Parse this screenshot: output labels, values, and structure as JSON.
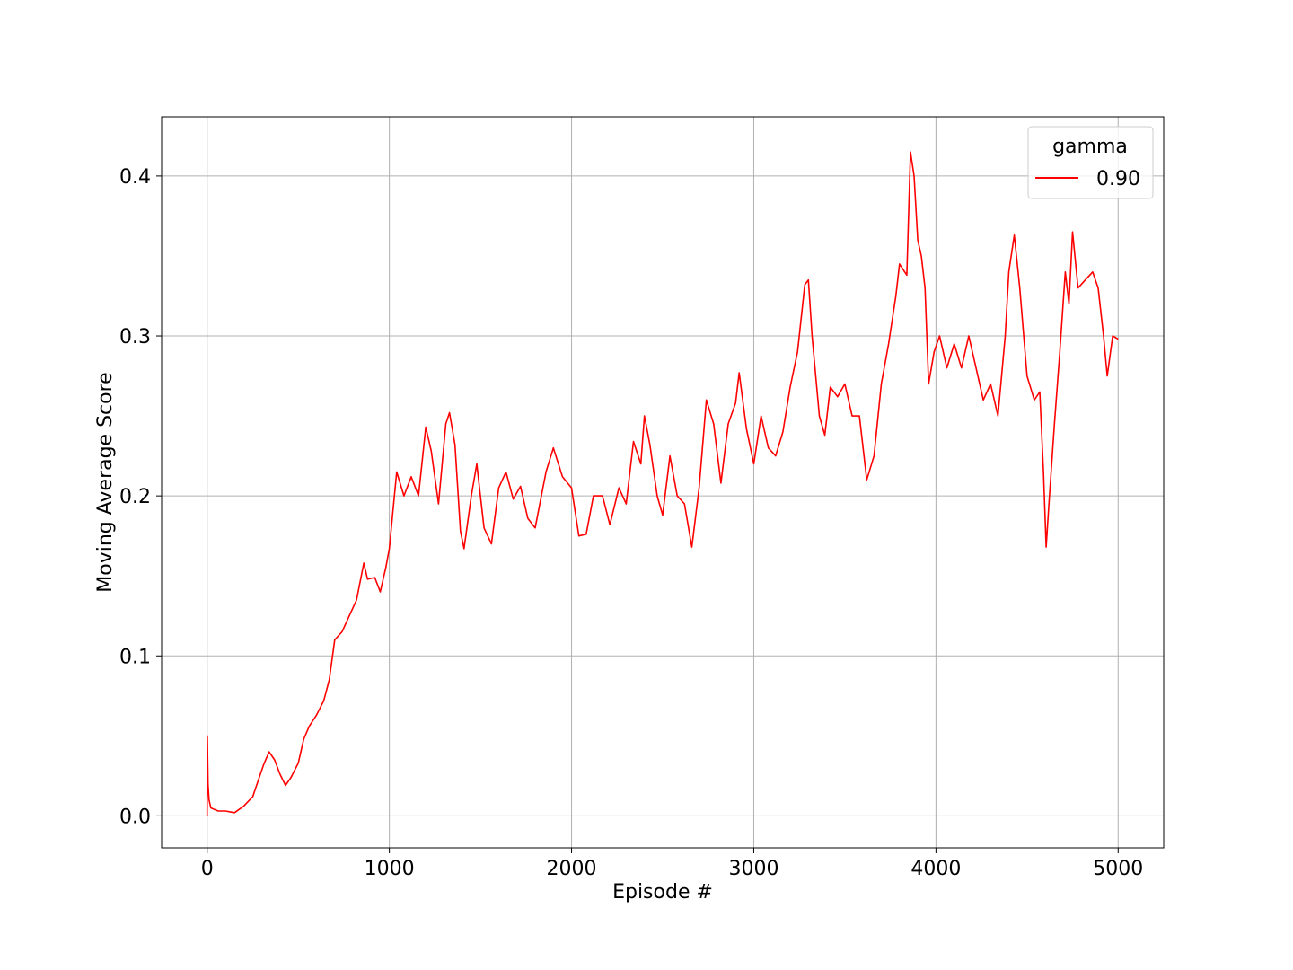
{
  "chart_data": {
    "type": "line",
    "title": "",
    "xlabel": "Episode #",
    "ylabel": "Moving Average Score",
    "xlim": [
      -250,
      5250
    ],
    "ylim": [
      -0.02,
      0.437
    ],
    "xticks": [
      0,
      1000,
      2000,
      3000,
      4000,
      5000
    ],
    "xtick_labels": [
      "0",
      "1000",
      "2000",
      "3000",
      "4000",
      "5000"
    ],
    "yticks": [
      0.0,
      0.1,
      0.2,
      0.3,
      0.4
    ],
    "ytick_labels": [
      "0.0",
      "0.1",
      "0.2",
      "0.3",
      "0.4"
    ],
    "grid": true,
    "legend": {
      "title": "gamma",
      "placement": "top-right"
    },
    "series": [
      {
        "name": "0.90",
        "color": "#ff0000",
        "points": [
          [
            0,
            0.0
          ],
          [
            1,
            0.05
          ],
          [
            5,
            0.02
          ],
          [
            10,
            0.01
          ],
          [
            20,
            0.005
          ],
          [
            40,
            0.004
          ],
          [
            60,
            0.003
          ],
          [
            100,
            0.003
          ],
          [
            150,
            0.002
          ],
          [
            200,
            0.006
          ],
          [
            250,
            0.012
          ],
          [
            280,
            0.022
          ],
          [
            310,
            0.032
          ],
          [
            340,
            0.04
          ],
          [
            370,
            0.035
          ],
          [
            400,
            0.026
          ],
          [
            430,
            0.019
          ],
          [
            460,
            0.024
          ],
          [
            500,
            0.033
          ],
          [
            530,
            0.048
          ],
          [
            560,
            0.056
          ],
          [
            600,
            0.063
          ],
          [
            640,
            0.072
          ],
          [
            670,
            0.085
          ],
          [
            700,
            0.11
          ],
          [
            740,
            0.115
          ],
          [
            780,
            0.125
          ],
          [
            820,
            0.135
          ],
          [
            860,
            0.158
          ],
          [
            880,
            0.148
          ],
          [
            920,
            0.149
          ],
          [
            950,
            0.14
          ],
          [
            980,
            0.155
          ],
          [
            1000,
            0.167
          ],
          [
            1040,
            0.215
          ],
          [
            1080,
            0.2
          ],
          [
            1120,
            0.212
          ],
          [
            1160,
            0.2
          ],
          [
            1200,
            0.243
          ],
          [
            1230,
            0.228
          ],
          [
            1270,
            0.195
          ],
          [
            1310,
            0.245
          ],
          [
            1330,
            0.252
          ],
          [
            1360,
            0.232
          ],
          [
            1390,
            0.178
          ],
          [
            1410,
            0.167
          ],
          [
            1450,
            0.2
          ],
          [
            1480,
            0.22
          ],
          [
            1520,
            0.18
          ],
          [
            1560,
            0.17
          ],
          [
            1600,
            0.205
          ],
          [
            1640,
            0.215
          ],
          [
            1680,
            0.198
          ],
          [
            1720,
            0.206
          ],
          [
            1760,
            0.186
          ],
          [
            1800,
            0.18
          ],
          [
            1860,
            0.215
          ],
          [
            1900,
            0.23
          ],
          [
            1950,
            0.212
          ],
          [
            2000,
            0.205
          ],
          [
            2040,
            0.175
          ],
          [
            2080,
            0.176
          ],
          [
            2120,
            0.2
          ],
          [
            2170,
            0.2
          ],
          [
            2210,
            0.182
          ],
          [
            2260,
            0.205
          ],
          [
            2300,
            0.195
          ],
          [
            2340,
            0.234
          ],
          [
            2380,
            0.22
          ],
          [
            2400,
            0.25
          ],
          [
            2430,
            0.232
          ],
          [
            2470,
            0.2
          ],
          [
            2500,
            0.188
          ],
          [
            2540,
            0.225
          ],
          [
            2580,
            0.2
          ],
          [
            2620,
            0.195
          ],
          [
            2660,
            0.168
          ],
          [
            2700,
            0.205
          ],
          [
            2740,
            0.26
          ],
          [
            2780,
            0.245
          ],
          [
            2820,
            0.208
          ],
          [
            2860,
            0.245
          ],
          [
            2900,
            0.258
          ],
          [
            2920,
            0.277
          ],
          [
            2960,
            0.242
          ],
          [
            3000,
            0.22
          ],
          [
            3040,
            0.25
          ],
          [
            3080,
            0.23
          ],
          [
            3120,
            0.225
          ],
          [
            3160,
            0.24
          ],
          [
            3200,
            0.268
          ],
          [
            3240,
            0.29
          ],
          [
            3280,
            0.332
          ],
          [
            3300,
            0.335
          ],
          [
            3320,
            0.3
          ],
          [
            3360,
            0.25
          ],
          [
            3390,
            0.238
          ],
          [
            3420,
            0.268
          ],
          [
            3460,
            0.262
          ],
          [
            3500,
            0.27
          ],
          [
            3540,
            0.25
          ],
          [
            3580,
            0.25
          ],
          [
            3620,
            0.21
          ],
          [
            3660,
            0.225
          ],
          [
            3700,
            0.27
          ],
          [
            3740,
            0.295
          ],
          [
            3780,
            0.325
          ],
          [
            3800,
            0.345
          ],
          [
            3840,
            0.338
          ],
          [
            3860,
            0.415
          ],
          [
            3880,
            0.4
          ],
          [
            3900,
            0.36
          ],
          [
            3920,
            0.35
          ],
          [
            3940,
            0.33
          ],
          [
            3960,
            0.27
          ],
          [
            3990,
            0.29
          ],
          [
            4020,
            0.3
          ],
          [
            4060,
            0.28
          ],
          [
            4100,
            0.295
          ],
          [
            4140,
            0.28
          ],
          [
            4180,
            0.3
          ],
          [
            4220,
            0.28
          ],
          [
            4260,
            0.26
          ],
          [
            4300,
            0.27
          ],
          [
            4340,
            0.25
          ],
          [
            4380,
            0.3
          ],
          [
            4400,
            0.34
          ],
          [
            4430,
            0.363
          ],
          [
            4460,
            0.33
          ],
          [
            4500,
            0.275
          ],
          [
            4540,
            0.26
          ],
          [
            4570,
            0.265
          ],
          [
            4590,
            0.215
          ],
          [
            4605,
            0.168
          ],
          [
            4620,
            0.195
          ],
          [
            4650,
            0.245
          ],
          [
            4680,
            0.29
          ],
          [
            4710,
            0.34
          ],
          [
            4730,
            0.32
          ],
          [
            4750,
            0.365
          ],
          [
            4780,
            0.33
          ],
          [
            4820,
            0.335
          ],
          [
            4860,
            0.34
          ],
          [
            4890,
            0.33
          ],
          [
            4920,
            0.3
          ],
          [
            4940,
            0.275
          ],
          [
            4970,
            0.3
          ],
          [
            5000,
            0.298
          ]
        ]
      }
    ]
  }
}
